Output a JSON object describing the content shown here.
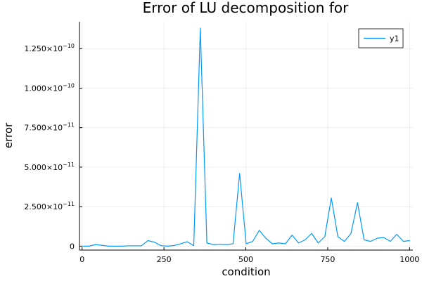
{
  "chart_data": {
    "type": "line",
    "title": "Error of LU decomposition for",
    "xlabel": "condition",
    "ylabel": "error",
    "xlim": [
      -8,
      1010
    ],
    "ylim": [
      -2.5e-12,
      1.42e-10
    ],
    "xticks": [
      0,
      250,
      500,
      750,
      1000
    ],
    "xtick_labels": [
      "0",
      "250",
      "500",
      "750",
      "1000"
    ],
    "yticks": [
      0,
      2.5e-11,
      5e-11,
      7.5e-11,
      1e-10,
      1.25e-10
    ],
    "ytick_labels": [
      {
        "base": "0",
        "exp": ""
      },
      {
        "base": "2.500×10",
        "exp": "−11"
      },
      {
        "base": "5.000×10",
        "exp": "−11"
      },
      {
        "base": "7.500×10",
        "exp": "−11"
      },
      {
        "base": "1.000×10",
        "exp": "−10"
      },
      {
        "base": "1.250×10",
        "exp": "−10"
      }
    ],
    "grid": true,
    "legend_position": "top-right",
    "series": [
      {
        "name": "y1",
        "color": "#009af9",
        "x": [
          1,
          21,
          41,
          61,
          81,
          101,
          121,
          141,
          161,
          181,
          201,
          221,
          241,
          261,
          281,
          301,
          321,
          341,
          361,
          381,
          401,
          421,
          441,
          461,
          481,
          501,
          521,
          541,
          561,
          581,
          601,
          621,
          641,
          661,
          681,
          701,
          721,
          741,
          761,
          781,
          801,
          821,
          841,
          861,
          881,
          901,
          921,
          941,
          961,
          981,
          1001
        ],
        "y": [
          0,
          0,
          1e-12,
          5e-13,
          0,
          0,
          0,
          2e-13,
          2e-13,
          2e-13,
          3.5e-12,
          2.5e-12,
          3e-13,
          0,
          4e-13,
          1.5e-12,
          2.8e-12,
          3e-13,
          1.38e-10,
          2e-12,
          1e-12,
          1.2e-12,
          1e-12,
          1.5e-12,
          4.6e-11,
          1.5e-12,
          3e-12,
          1e-11,
          5e-12,
          1.5e-12,
          2e-12,
          1.5e-12,
          7e-12,
          2e-12,
          4e-12,
          8e-12,
          2e-12,
          6e-12,
          3.05e-11,
          6e-12,
          3e-12,
          8e-12,
          2.75e-11,
          4e-12,
          3e-12,
          5e-12,
          5.5e-12,
          3e-12,
          7.5e-12,
          3e-12,
          3.5e-12
        ]
      }
    ]
  }
}
